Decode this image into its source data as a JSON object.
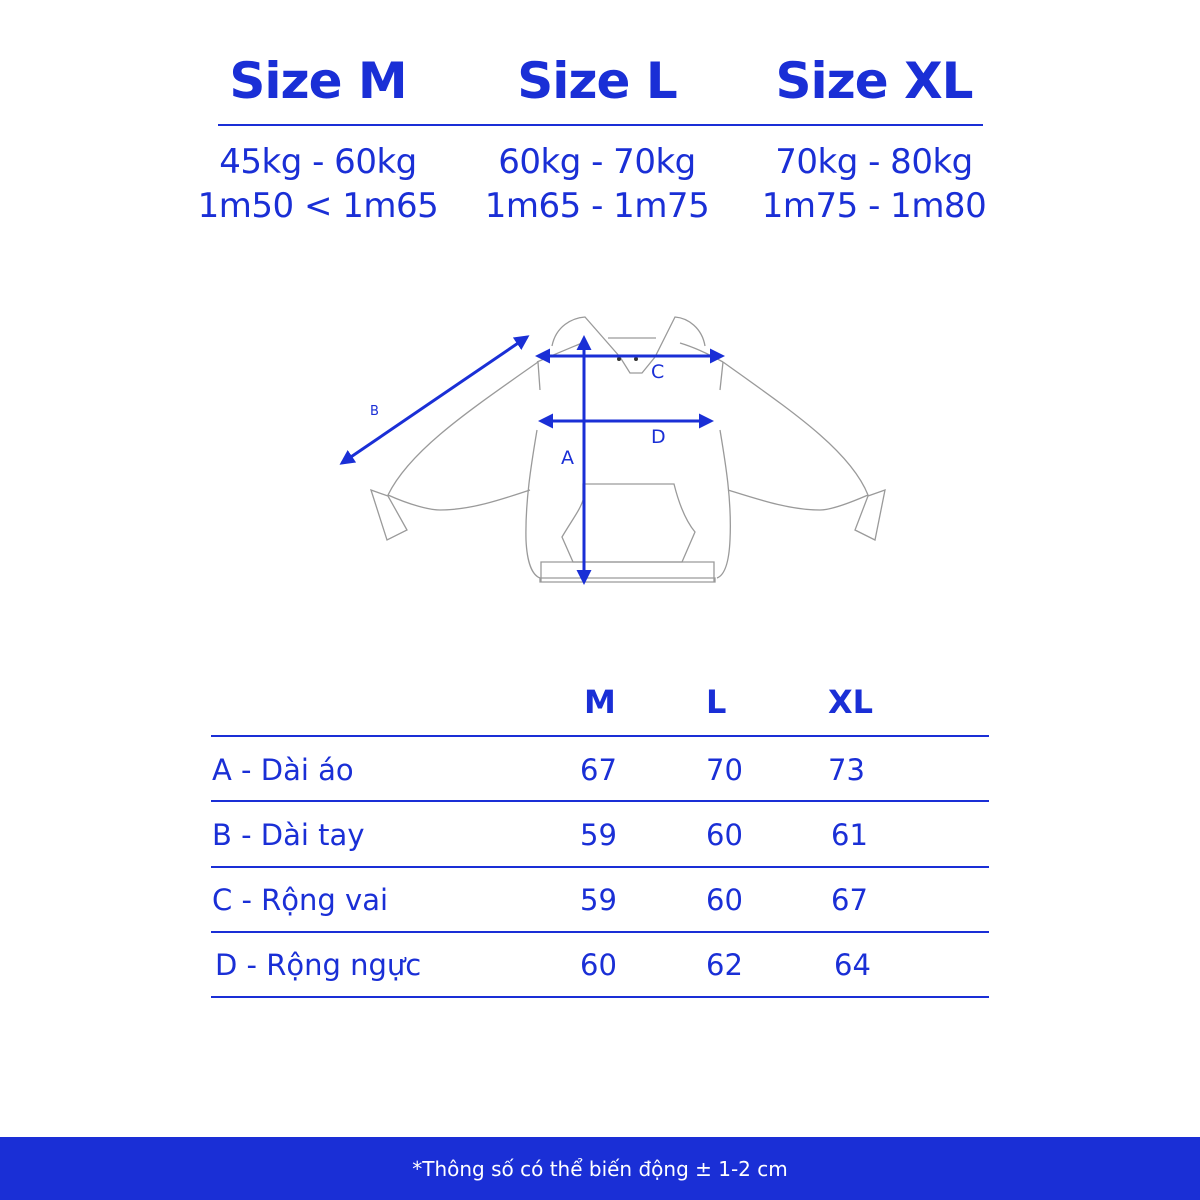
{
  "colors": {
    "accent": "#1a2fd6",
    "outline": "#9a9a9a",
    "background": "#ffffff"
  },
  "sizes": [
    {
      "title": "Size M",
      "weight": "45kg - 60kg",
      "height": "1m50 < 1m65"
    },
    {
      "title": "Size L",
      "weight": "60kg - 70kg",
      "height": "1m65 - 1m75"
    },
    {
      "title": "Size XL",
      "weight": "70kg - 80kg",
      "height": "1m75 - 1m80"
    }
  ],
  "diagram": {
    "labels": {
      "a": "A",
      "b": "B",
      "c": "C",
      "d": "D"
    }
  },
  "table": {
    "headers": [
      "M",
      "L",
      "XL"
    ],
    "rows": [
      {
        "label": "A - Dài áo",
        "values": [
          "67",
          "70",
          "73"
        ]
      },
      {
        "label": "B - Dài tay",
        "values": [
          "59",
          "60",
          "61"
        ]
      },
      {
        "label": "C - Rộng vai",
        "values": [
          "59",
          "60",
          "67"
        ]
      },
      {
        "label": "D - Rộng ngực",
        "values": [
          "60",
          "62",
          "64"
        ]
      }
    ]
  },
  "footer": {
    "note": "*Thông số có thể biến động ± 1-2 cm"
  }
}
